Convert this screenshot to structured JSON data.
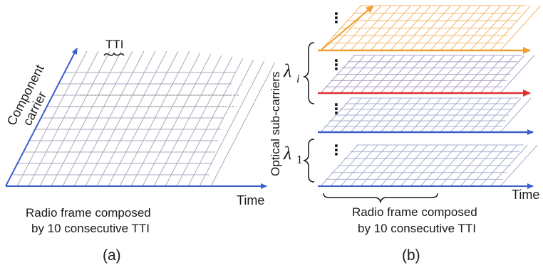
{
  "panel_a": {
    "tti_label": "TTI",
    "y_axis_label_line1": "Component",
    "y_axis_label_line2": "carrier",
    "x_axis_label": "Time",
    "caption_line1": "Radio frame composed",
    "caption_line2": "by 10 consecutive TTI",
    "panel_label": "(a)"
  },
  "panel_b": {
    "y_axis_label": "Optical sub-carriers",
    "lambda_i_symbol": "λ",
    "lambda_i_subscript": "i",
    "lambda_1_symbol": "λ",
    "lambda_1_subscript": "1",
    "x_axis_label": "Time",
    "caption_line1": "Radio frame composed",
    "caption_line2": "by 10 consecutive TTI",
    "panel_label": "(b)",
    "ellipsis": "⋮"
  },
  "colors": {
    "axis_blue": "#3a5fcd",
    "grid_gray": "#a9a9bd",
    "orange": "#f0a030",
    "red": "#e03030",
    "layer_top_tint": "#f4b870",
    "layer_mid_tint": "#b0a0c8",
    "layer_low_tint": "#a8b0d0"
  }
}
